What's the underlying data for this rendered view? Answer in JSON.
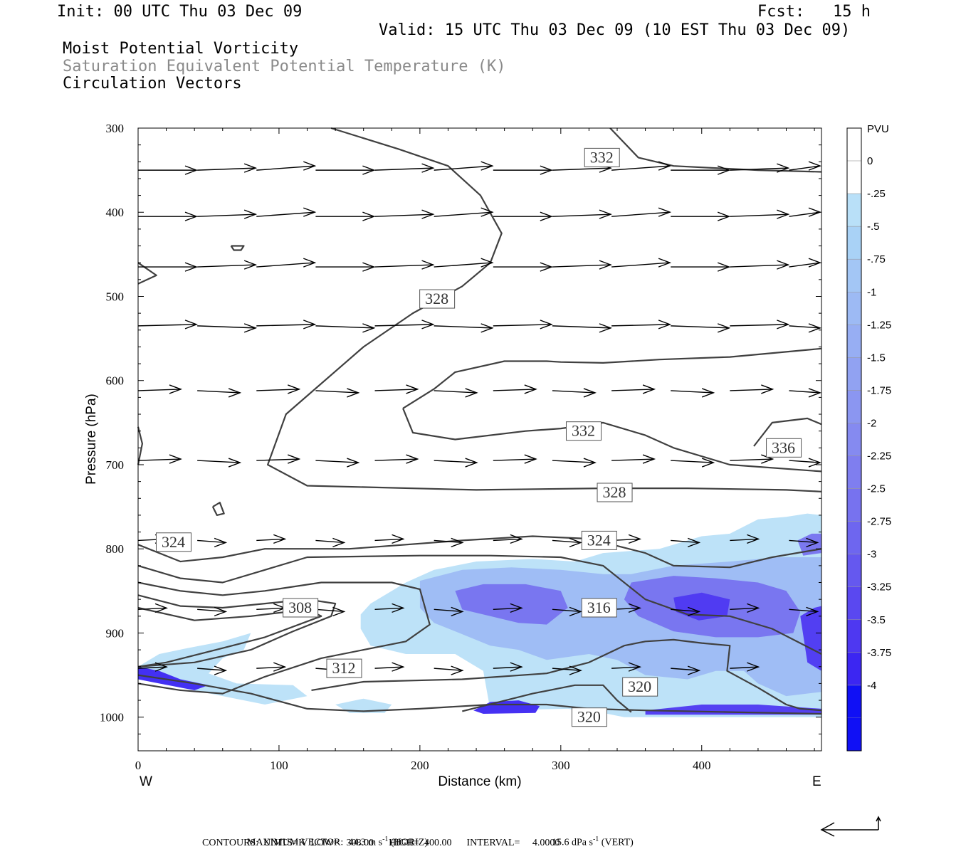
{
  "header": {
    "init": "Init: 00 UTC Thu 03 Dec 09",
    "fcst": "Fcst:   15 h",
    "valid": "Valid: 15 UTC Thu 03 Dec 09 (10 EST Thu 03 Dec 09)",
    "field1": "Moist Potential Vorticity",
    "field2": "Saturation Equivalent Potential Temperature (K)",
    "field3": "Circulation Vectors"
  },
  "footer": {
    "max_vector": "MAXIMUM VECTOR:  44.3 m s",
    "horiz": " (HORIZ)",
    "vert_val": "15.6 dPa s",
    "vert": " (VERT)",
    "exp": "-1",
    "contours": "CONTOURS:  UNITS=K  LOW=   308.00      HIGH=  400.00      INTERVAL=     4.0000"
  },
  "colors": {
    "shade_light": "#b9e0f8",
    "shade_mid": "#8ea0f0",
    "shade_dark": "#3a3af0",
    "contour": "#404040",
    "vector": "#000000"
  },
  "chart_data": {
    "type": "cross-section",
    "xlabel": "Distance (km)",
    "ylabel": "Pressure (hPa)",
    "xlim": [
      0,
      485
    ],
    "ylim": [
      1040,
      300
    ],
    "xticks": [
      0,
      100,
      200,
      300,
      400
    ],
    "yticks": [
      300,
      400,
      500,
      600,
      700,
      800,
      900,
      1000
    ],
    "x_end_labels": {
      "left": "W",
      "right": "E"
    },
    "colorbar": {
      "title": "PVU",
      "ticks": [
        "0",
        "-.25",
        "-.5",
        "-.75",
        "-1",
        "-1.25",
        "-1.5",
        "-1.75",
        "-2",
        "-2.25",
        "-2.5",
        "-2.75",
        "-3",
        "-3.25",
        "-3.5",
        "-3.75",
        "-4"
      ],
      "colors": [
        "#ffffff",
        "#b9e0f8",
        "#a9d2f6",
        "#a3c6f5",
        "#9dbaf4",
        "#97aef3",
        "#91a2f2",
        "#8b96f1",
        "#858af0",
        "#7f7eef",
        "#7772ef",
        "#6e66ef",
        "#6558ef",
        "#5a48f0",
        "#4e38f1",
        "#3c26f2",
        "#1010f5"
      ]
    },
    "contour_labels": [
      {
        "text": "332",
        "x": 329,
        "p": 335
      },
      {
        "text": "328",
        "x": 212,
        "p": 503
      },
      {
        "text": "332",
        "x": 316,
        "p": 660
      },
      {
        "text": "336",
        "x": 458,
        "p": 680
      },
      {
        "text": "328",
        "x": 338,
        "p": 733
      },
      {
        "text": "324",
        "x": 25,
        "p": 792
      },
      {
        "text": "324",
        "x": 327,
        "p": 790
      },
      {
        "text": "308",
        "x": 115,
        "p": 870
      },
      {
        "text": "316",
        "x": 327,
        "p": 870
      },
      {
        "text": "312",
        "x": 146,
        "p": 942
      },
      {
        "text": "320",
        "x": 356,
        "p": 964
      },
      {
        "text": "320",
        "x": 320,
        "p": 1000
      }
    ],
    "contours": [
      [
        [
          137,
          300
        ],
        [
          185,
          325
        ],
        [
          220,
          345
        ],
        [
          243,
          380
        ],
        [
          258,
          425
        ],
        [
          250,
          460
        ],
        [
          230,
          488
        ],
        [
          195,
          520
        ],
        [
          160,
          560
        ],
        [
          105,
          640
        ],
        [
          92,
          700
        ],
        [
          120,
          725
        ],
        [
          240,
          730
        ],
        [
          330,
          728
        ],
        [
          390,
          728
        ],
        [
          460,
          730
        ],
        [
          485,
          732
        ]
      ],
      [
        [
          335,
          300
        ],
        [
          355,
          335
        ],
        [
          380,
          345
        ],
        [
          440,
          350
        ],
        [
          485,
          352
        ]
      ],
      [
        [
          188,
          633
        ],
        [
          210,
          610
        ],
        [
          225,
          590
        ],
        [
          260,
          577
        ],
        [
          290,
          577
        ],
        [
          300,
          578
        ],
        [
          330,
          579
        ],
        [
          370,
          575
        ],
        [
          420,
          572
        ],
        [
          485,
          562
        ]
      ],
      [
        [
          188,
          633
        ],
        [
          195,
          662
        ],
        [
          225,
          670
        ],
        [
          275,
          660
        ],
        [
          300,
          657
        ],
        [
          330,
          650
        ],
        [
          360,
          665
        ],
        [
          380,
          680
        ],
        [
          420,
          700
        ],
        [
          485,
          708
        ]
      ],
      [
        [
          437,
          678
        ],
        [
          450,
          650
        ],
        [
          475,
          645
        ],
        [
          485,
          652
        ]
      ],
      [
        [
          0,
          460
        ],
        [
          13,
          475
        ],
        [
          0,
          485
        ]
      ],
      [
        [
          0,
          655
        ],
        [
          3,
          675
        ],
        [
          0,
          700
        ]
      ],
      [
        [
          53,
          750
        ],
        [
          58,
          745
        ],
        [
          61,
          758
        ],
        [
          56,
          760
        ],
        [
          53,
          750
        ]
      ],
      [
        [
          66,
          440
        ],
        [
          75,
          440
        ],
        [
          73,
          445
        ],
        [
          68,
          445
        ],
        [
          66,
          440
        ]
      ],
      [
        [
          0,
          795
        ],
        [
          30,
          815
        ],
        [
          60,
          810
        ],
        [
          90,
          800
        ],
        [
          150,
          800
        ],
        [
          230,
          790
        ],
        [
          280,
          785
        ],
        [
          320,
          788
        ],
        [
          360,
          805
        ],
        [
          380,
          820
        ],
        [
          420,
          822
        ],
        [
          450,
          810
        ],
        [
          485,
          800
        ]
      ],
      [
        [
          0,
          820
        ],
        [
          30,
          835
        ],
        [
          60,
          840
        ],
        [
          90,
          825
        ],
        [
          120,
          810
        ],
        [
          200,
          808
        ],
        [
          250,
          808
        ],
        [
          300,
          810
        ],
        [
          330,
          820
        ],
        [
          360,
          860
        ],
        [
          390,
          878
        ],
        [
          420,
          880
        ],
        [
          450,
          895
        ],
        [
          485,
          925
        ]
      ],
      [
        [
          0,
          840
        ],
        [
          30,
          850
        ],
        [
          60,
          855
        ],
        [
          90,
          850
        ],
        [
          130,
          840
        ],
        [
          180,
          840
        ],
        [
          200,
          848
        ],
        [
          207,
          890
        ],
        [
          190,
          910
        ],
        [
          130,
          930
        ],
        [
          90,
          952
        ],
        [
          60,
          972
        ],
        [
          30,
          968
        ],
        [
          0,
          960
        ]
      ],
      [
        [
          0,
          855
        ],
        [
          30,
          868
        ],
        [
          60,
          870
        ],
        [
          90,
          865
        ],
        [
          120,
          860
        ],
        [
          140,
          865
        ],
        [
          137,
          880
        ],
        [
          110,
          898
        ],
        [
          80,
          920
        ],
        [
          40,
          935
        ],
        [
          0,
          940
        ]
      ],
      [
        [
          0,
          870
        ],
        [
          40,
          885
        ],
        [
          80,
          880
        ],
        [
          120,
          872
        ],
        [
          130,
          880
        ],
        [
          90,
          905
        ],
        [
          60,
          918
        ],
        [
          20,
          935
        ],
        [
          0,
          940
        ]
      ],
      [
        [
          123,
          968
        ],
        [
          160,
          958
        ],
        [
          230,
          955
        ],
        [
          290,
          948
        ],
        [
          320,
          935
        ],
        [
          345,
          915
        ],
        [
          360,
          910
        ],
        [
          380,
          908
        ],
        [
          400,
          912
        ],
        [
          420,
          915
        ],
        [
          418,
          945
        ],
        [
          440,
          965
        ],
        [
          460,
          985
        ],
        [
          470,
          990
        ],
        [
          485,
          992
        ]
      ],
      [
        [
          0,
          950
        ],
        [
          40,
          960
        ],
        [
          80,
          972
        ],
        [
          120,
          990
        ],
        [
          160,
          993
        ],
        [
          200,
          990
        ],
        [
          250,
          985
        ],
        [
          290,
          985
        ],
        [
          320,
          990
        ],
        [
          360,
          992
        ],
        [
          420,
          994
        ],
        [
          485,
          996
        ]
      ],
      [
        [
          230,
          993
        ],
        [
          280,
          972
        ],
        [
          310,
          962
        ],
        [
          330,
          962
        ],
        [
          340,
          980
        ],
        [
          350,
          994
        ]
      ]
    ],
    "shading": [
      {
        "level": "-.25",
        "pts": [
          [
            158,
            878
          ],
          [
            165,
            865
          ],
          [
            190,
            840
          ],
          [
            210,
            825
          ],
          [
            240,
            815
          ],
          [
            280,
            812
          ],
          [
            310,
            815
          ],
          [
            330,
            805
          ],
          [
            370,
            800
          ],
          [
            400,
            785
          ],
          [
            420,
            782
          ],
          [
            440,
            765
          ],
          [
            460,
            762
          ],
          [
            475,
            758
          ],
          [
            485,
            760
          ],
          [
            485,
            1000
          ],
          [
            345,
            1000
          ],
          [
            330,
            995
          ],
          [
            305,
            990
          ],
          [
            250,
            992
          ],
          [
            245,
            945
          ],
          [
            225,
            925
          ],
          [
            190,
            925
          ],
          [
            165,
            915
          ],
          [
            158,
            895
          ]
        ]
      },
      {
        "level": "-.25",
        "pts": [
          [
            0,
            940
          ],
          [
            15,
            925
          ],
          [
            35,
            918
          ],
          [
            60,
            910
          ],
          [
            80,
            900
          ],
          [
            75,
            920
          ],
          [
            60,
            930
          ],
          [
            50,
            948
          ],
          [
            70,
            960
          ],
          [
            110,
            962
          ],
          [
            120,
            975
          ],
          [
            90,
            985
          ],
          [
            60,
            975
          ],
          [
            30,
            965
          ],
          [
            0,
            955
          ]
        ]
      },
      {
        "level": "-.25",
        "pts": [
          [
            140,
            985
          ],
          [
            160,
            978
          ],
          [
            180,
            985
          ],
          [
            175,
            995
          ],
          [
            150,
            995
          ]
        ]
      },
      {
        "level": "-1",
        "pts": [
          [
            200,
            838
          ],
          [
            230,
            825
          ],
          [
            265,
            822
          ],
          [
            300,
            825
          ],
          [
            330,
            830
          ],
          [
            350,
            830
          ],
          [
            380,
            820
          ],
          [
            420,
            815
          ],
          [
            455,
            810
          ],
          [
            485,
            810
          ],
          [
            485,
            970
          ],
          [
            460,
            975
          ],
          [
            440,
            960
          ],
          [
            430,
            945
          ],
          [
            410,
            945
          ],
          [
            390,
            955
          ],
          [
            360,
            950
          ],
          [
            340,
            932
          ],
          [
            320,
            925
          ],
          [
            290,
            932
          ],
          [
            270,
            920
          ],
          [
            250,
            915
          ],
          [
            225,
            898
          ],
          [
            210,
            888
          ],
          [
            200,
            870
          ]
        ]
      },
      {
        "level": "-2.5",
        "pts": [
          [
            225,
            850
          ],
          [
            245,
            842
          ],
          [
            275,
            842
          ],
          [
            300,
            850
          ],
          [
            305,
            870
          ],
          [
            290,
            890
          ],
          [
            270,
            888
          ],
          [
            250,
            880
          ],
          [
            230,
            872
          ]
        ]
      },
      {
        "level": "-2.5",
        "pts": [
          [
            350,
            840
          ],
          [
            380,
            832
          ],
          [
            410,
            835
          ],
          [
            440,
            840
          ],
          [
            460,
            850
          ],
          [
            470,
            875
          ],
          [
            465,
            900
          ],
          [
            440,
            905
          ],
          [
            410,
            905
          ],
          [
            380,
            898
          ],
          [
            355,
            880
          ],
          [
            345,
            860
          ]
        ]
      },
      {
        "level": "-3.5",
        "pts": [
          [
            380,
            858
          ],
          [
            400,
            852
          ],
          [
            420,
            860
          ],
          [
            418,
            880
          ],
          [
            398,
            885
          ],
          [
            382,
            875
          ]
        ]
      },
      {
        "level": "-2.5",
        "pts": [
          [
            468,
            790
          ],
          [
            478,
            782
          ],
          [
            485,
            782
          ],
          [
            485,
            805
          ],
          [
            472,
            808
          ]
        ]
      },
      {
        "level": "-3.75",
        "pts": [
          [
            238,
            992
          ],
          [
            250,
            982
          ],
          [
            270,
            980
          ],
          [
            285,
            987
          ],
          [
            282,
            995
          ],
          [
            245,
            996
          ]
        ]
      },
      {
        "level": "-3.75",
        "pts": [
          [
            0,
            940
          ],
          [
            15,
            945
          ],
          [
            30,
            955
          ],
          [
            50,
            962
          ],
          [
            40,
            968
          ],
          [
            15,
            960
          ],
          [
            0,
            955
          ]
        ]
      },
      {
        "level": "-3.5",
        "pts": [
          [
            360,
            992
          ],
          [
            400,
            985
          ],
          [
            440,
            985
          ],
          [
            485,
            990
          ],
          [
            485,
            997
          ],
          [
            360,
            997
          ]
        ]
      },
      {
        "level": "-3.5",
        "pts": [
          [
            470,
            880
          ],
          [
            480,
            870
          ],
          [
            485,
            868
          ],
          [
            485,
            945
          ],
          [
            475,
            935
          ]
        ]
      }
    ],
    "vector_rows": [
      350,
      405,
      465,
      535,
      612,
      695,
      790,
      872,
      942
    ],
    "vectors_note": "circulation vectors predominantly eastward"
  }
}
